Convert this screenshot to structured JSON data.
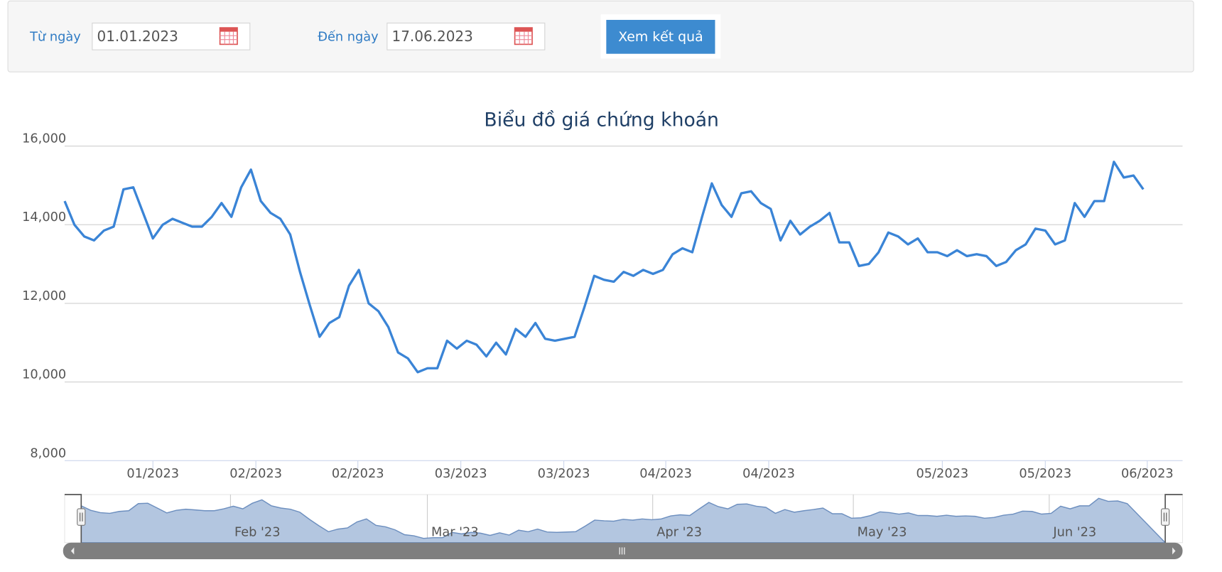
{
  "form": {
    "from_label": "Từ ngày",
    "from_value": "01.01.2023",
    "to_label": "Đến ngày",
    "to_value": "17.06.2023",
    "button": "Xem kết quả"
  },
  "chart_data": {
    "type": "line",
    "title": "Biểu đồ giá chứng khoán",
    "color": "#3a84d6",
    "grid": true,
    "values": [
      14600,
      14000,
      13700,
      13600,
      13850,
      13950,
      14900,
      14950,
      14300,
      13650,
      14000,
      14150,
      14050,
      13950,
      13950,
      14200,
      14550,
      14200,
      14950,
      15400,
      14600,
      14300,
      14150,
      13750,
      12800,
      11950,
      11150,
      11500,
      11650,
      12450,
      12850,
      12000,
      11800,
      11400,
      10750,
      10600,
      10250,
      10350,
      10350,
      11050,
      10850,
      11050,
      10950,
      10650,
      11000,
      10700,
      11350,
      11150,
      11500,
      11100,
      11050,
      11100,
      11150,
      11900,
      12700,
      12600,
      12550,
      12800,
      12700,
      12850,
      12750,
      12850,
      13250,
      13400,
      13300,
      14200,
      15050,
      14500,
      14200,
      14800,
      14850,
      14550,
      14400,
      13600,
      14100,
      13750,
      13950,
      14100,
      14300,
      13550,
      13550,
      12950,
      13000,
      13300,
      13800,
      13700,
      13500,
      13650,
      13300,
      13300,
      13200,
      13350,
      13200,
      13250,
      13200,
      12950,
      13050,
      13350,
      13500,
      13900,
      13850,
      13500,
      13600,
      14550,
      14200,
      14600,
      14600,
      15600,
      15200,
      15250,
      14900
    ],
    "xlim": [
      0,
      114
    ],
    "xticks": [
      {
        "value": 9,
        "label": "01/2023"
      },
      {
        "value": 19.5,
        "label": "02/2023"
      },
      {
        "value": 29.9,
        "label": "02/2023"
      },
      {
        "value": 40.4,
        "label": "03/2023"
      },
      {
        "value": 50.9,
        "label": "03/2023"
      },
      {
        "value": 61.3,
        "label": "04/2023"
      },
      {
        "value": 71.8,
        "label": "04/2023"
      },
      {
        "value": 89.5,
        "label": "05/2023"
      },
      {
        "value": 100,
        "label": "05/2023"
      },
      {
        "value": 110.4,
        "label": "06/2023"
      }
    ],
    "ylim": [
      8000,
      16000
    ],
    "yticks": [
      {
        "value": 8000,
        "label": "8,000"
      },
      {
        "value": 10000,
        "label": "10,000"
      },
      {
        "value": 12000,
        "label": "12,000"
      },
      {
        "value": 14000,
        "label": "14,000"
      },
      {
        "value": 16000,
        "label": "16,000"
      }
    ],
    "navigator_xticks": [
      {
        "value": 15.7,
        "label": "Feb '23"
      },
      {
        "value": 36.4,
        "label": "Mar '23"
      },
      {
        "value": 60.1,
        "label": "Apr '23"
      },
      {
        "value": 81.2,
        "label": "May '23"
      },
      {
        "value": 101.8,
        "label": "Jun '23"
      }
    ]
  }
}
